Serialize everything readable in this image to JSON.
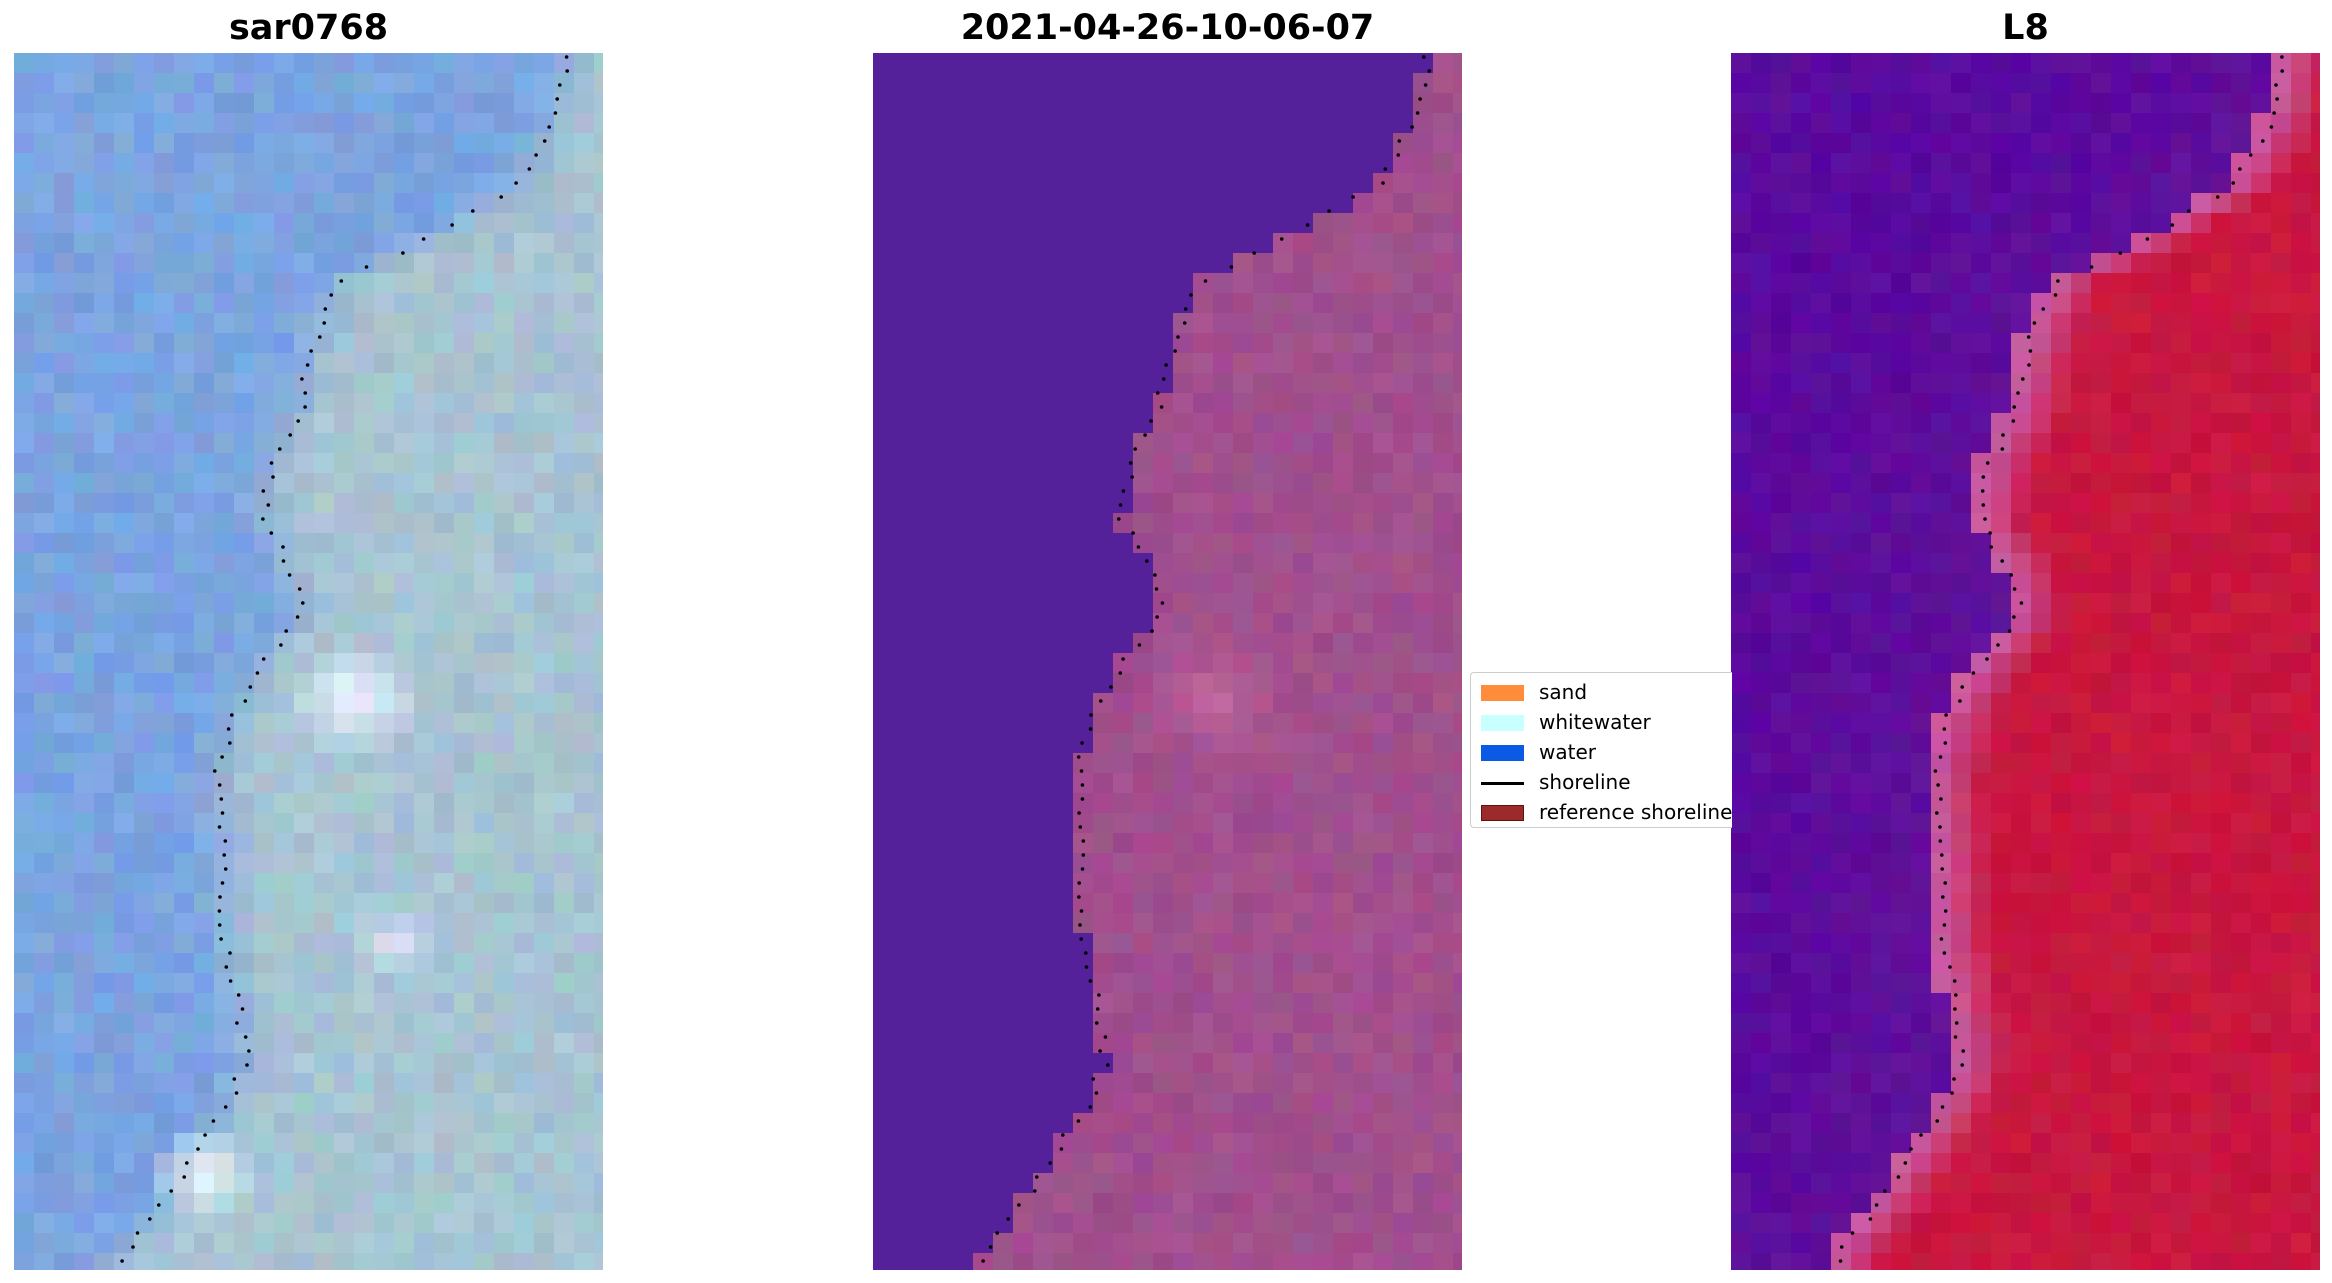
{
  "panels": [
    {
      "title": "sar0768",
      "kind": "rgb"
    },
    {
      "title": "2021-04-26-10-06-07",
      "kind": "classified"
    },
    {
      "title": "L8",
      "kind": "index"
    }
  ],
  "legend": {
    "items": [
      {
        "label": "sand",
        "type": "patch",
        "color": "#ff8c3a"
      },
      {
        "label": "whitewater",
        "type": "patch",
        "color": "#c8ffff"
      },
      {
        "label": "water",
        "type": "patch",
        "color": "#0a5ae6"
      },
      {
        "label": "shoreline",
        "type": "line",
        "color": "#000000"
      },
      {
        "label": "reference shoreline",
        "type": "patch",
        "color": "#9b2b2b"
      }
    ]
  },
  "colors": {
    "rgb_water": "#7ba4e0",
    "rgb_land": "#a7c4d2",
    "rgb_bright": "#f4f8ff",
    "classified_water": "#54219a",
    "classified_land": "#a14f8d",
    "index_water": "#5a0a9e",
    "index_land": "#c8173f",
    "shoreline_dots": "#000000"
  }
}
